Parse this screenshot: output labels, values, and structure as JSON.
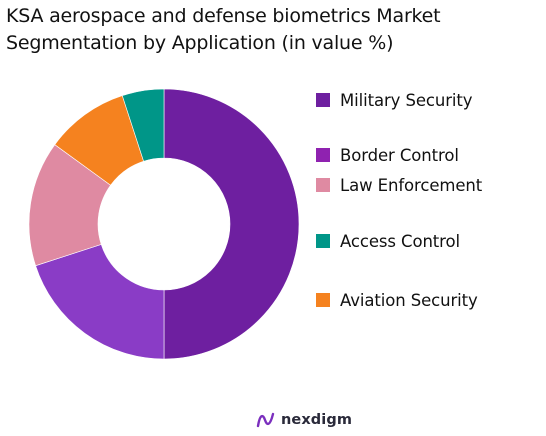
{
  "title": {
    "line1": "KSA aerospace and defense biometrics Market",
    "line2": "Segmentation by Application (in value %)"
  },
  "chart_data": {
    "type": "pie",
    "style": "donut",
    "title": "KSA aerospace and defense biometrics Market Segmentation by Application (in value %)",
    "legend_position": "right",
    "slices": [
      {
        "label": "Military Security",
        "value": 50,
        "color": "#6e1fa0"
      },
      {
        "label": "Border Control",
        "value": 20,
        "color": "#8a3cc6"
      },
      {
        "label": "Law Enforcement",
        "value": 15,
        "color": "#df8aa2"
      },
      {
        "label": "Access Control",
        "value": 10,
        "color": "#f5821f"
      },
      {
        "label": "Aviation Security",
        "value": 5,
        "color": "#009688"
      }
    ],
    "legend": [
      {
        "label": "Military Security",
        "color": "#6e1fa0"
      },
      {
        "label": "Border Control",
        "color": "#8f22b0"
      },
      {
        "label": "Law Enforcement",
        "color": "#df8aa2"
      },
      {
        "label": "Access Control",
        "color": "#009688"
      },
      {
        "label": "Aviation Security",
        "color": "#f5821f"
      }
    ]
  },
  "footer": {
    "brand": "nexdigm",
    "logo_icon": "nexdigm-logo-icon",
    "logo_color": "#7b2fbe"
  }
}
